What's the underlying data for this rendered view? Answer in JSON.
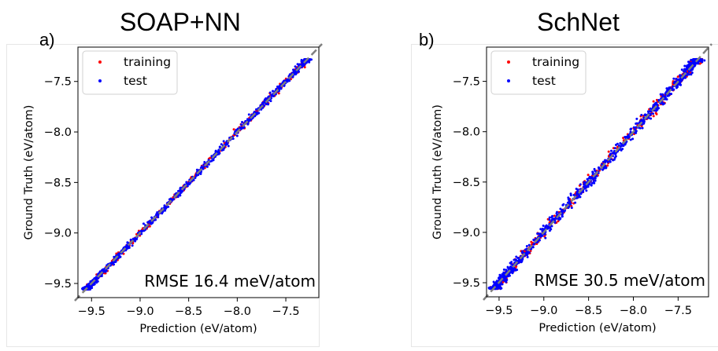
{
  "panels": [
    {
      "label": "a)",
      "title": "SOAP+NN"
    },
    {
      "label": "b)",
      "title": "SchNet"
    }
  ],
  "chart_data": [
    {
      "type": "scatter",
      "title": "SOAP+NN",
      "xlabel": "Prediction (eV/atom)",
      "ylabel": "Ground Truth (eV/atom)",
      "xlim": [
        -9.64,
        -7.16
      ],
      "ylim": [
        -9.64,
        -7.16
      ],
      "xticks": [
        -9.5,
        -9.0,
        -8.5,
        -8.0,
        -7.5
      ],
      "xtick_labels": [
        "−9.5",
        "−9.0",
        "−8.5",
        "−8.0",
        "−7.5"
      ],
      "yticks": [
        -9.5,
        -9.0,
        -8.5,
        -8.0,
        -7.5
      ],
      "ytick_labels": [
        "−9.5",
        "−9.0",
        "−8.5",
        "−8.0",
        "−7.5"
      ],
      "data_range": [
        -9.56,
        -7.28
      ],
      "reference_line": "y = x (dashed, gray)",
      "legend": {
        "position": "top-left",
        "entries": [
          "training",
          "test"
        ]
      },
      "annotation": "RMSE 16.4 meV/atom",
      "rmse_meV_per_atom": 16.4,
      "grid": false,
      "series": [
        {
          "name": "training",
          "color": "#ff0000",
          "spread_eV": 0.016,
          "seed": 11
        },
        {
          "name": "test",
          "color": "#0000ff",
          "spread_eV": 0.017,
          "seed": 23
        }
      ]
    },
    {
      "type": "scatter",
      "title": "SchNet",
      "xlabel": "Prediction (eV/atom)",
      "ylabel": "Ground Truth (eV/atom)",
      "xlim": [
        -9.64,
        -7.16
      ],
      "ylim": [
        -9.64,
        -7.16
      ],
      "xticks": [
        -9.5,
        -9.0,
        -8.5,
        -8.0,
        -7.5
      ],
      "xtick_labels": [
        "−9.5",
        "−9.0",
        "−8.5",
        "−8.0",
        "−7.5"
      ],
      "yticks": [
        -9.5,
        -9.0,
        -8.5,
        -8.0,
        -7.5
      ],
      "ytick_labels": [
        "−9.5",
        "−9.0",
        "−8.5",
        "−8.0",
        "−7.5"
      ],
      "data_range": [
        -9.56,
        -7.28
      ],
      "reference_line": "y = x (dashed, gray)",
      "legend": {
        "position": "top-left",
        "entries": [
          "training",
          "test"
        ]
      },
      "annotation": "RMSE 30.5 meV/atom",
      "rmse_meV_per_atom": 30.5,
      "grid": false,
      "series": [
        {
          "name": "training",
          "color": "#ff0000",
          "spread_eV": 0.028,
          "seed": 37
        },
        {
          "name": "test",
          "color": "#0000ff",
          "spread_eV": 0.031,
          "seed": 53
        }
      ]
    }
  ]
}
